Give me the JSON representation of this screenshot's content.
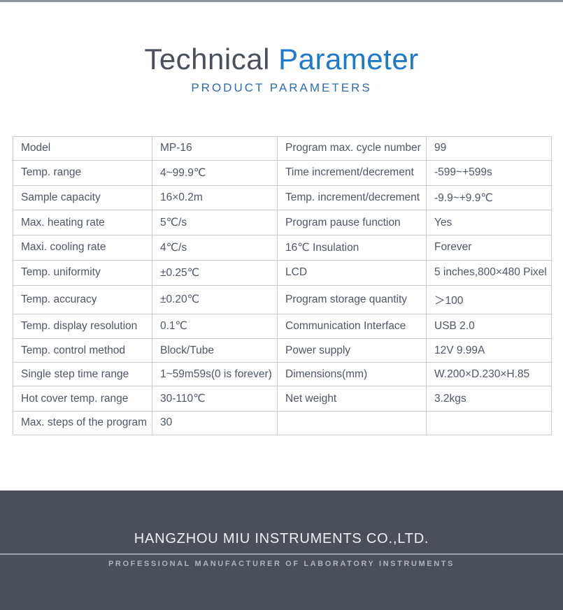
{
  "page": {
    "title_part1": "Technical",
    "title_part2": "Parameter",
    "subtitle": "PRODUCT PARAMETERS"
  },
  "colors": {
    "title_gray": "#49505b",
    "title_blue": "#1c79cc",
    "subtitle_blue": "#2d6cb3",
    "table_text": "#4e5765",
    "table_border": "#cccccc",
    "top_line": "#8d929c",
    "footer_bg": "#4a4f5a",
    "footer_text": "#eef0f2",
    "footer_divider": "#9aa0a9",
    "footer_tagline_text": "#b0b4bc"
  },
  "table": {
    "rows": [
      {
        "cells": [
          "Model",
          "MP-16",
          "Program max. cycle number",
          "99"
        ]
      },
      {
        "cells": [
          "Temp. range",
          "4~99.9℃",
          "Time increment/decrement",
          "-599~+599s"
        ]
      },
      {
        "cells": [
          "Sample capacity",
          "16×0.2m",
          "Temp. increment/decrement",
          "-9.9~+9.9℃"
        ]
      },
      {
        "cells": [
          "Max. heating rate",
          "5℃/s",
          "Program pause function",
          "Yes"
        ]
      },
      {
        "cells": [
          "Maxi. cooling rate",
          "4℃/s",
          "16℃ Insulation",
          "Forever"
        ]
      },
      {
        "cells": [
          "Temp. uniformity",
          "±0.25℃",
          "LCD",
          "5 inches,800×480 Pixel"
        ]
      },
      {
        "cells": [
          "Temp. accuracy",
          "±0.20℃",
          "Program storage quantity",
          "＞100"
        ]
      },
      {
        "cells": [
          "Temp. display resolution",
          "0.1℃",
          "Communication Interface",
          "USB 2.0"
        ]
      },
      {
        "cells": [
          "Temp. control method",
          "Block/Tube",
          "Power supply",
          "12V 9.99A"
        ]
      },
      {
        "cells": [
          "Single step time range",
          "1~59m59s(0 is forever)",
          "Dimensions(mm)",
          "W.200×D.230×H.85"
        ]
      },
      {
        "cells": [
          "Hot cover temp. range",
          "30-110℃",
          "Net weight",
          "3.2kgs"
        ]
      },
      {
        "cells": [
          "Max. steps of the program",
          "30",
          "",
          ""
        ]
      }
    ]
  },
  "footer": {
    "company": "HANGZHOU MIU INSTRUMENTS CO.,LTD.",
    "tagline": "PROFESSIONAL MANUFACTURER OF LABORATORY INSTRUMENTS"
  }
}
